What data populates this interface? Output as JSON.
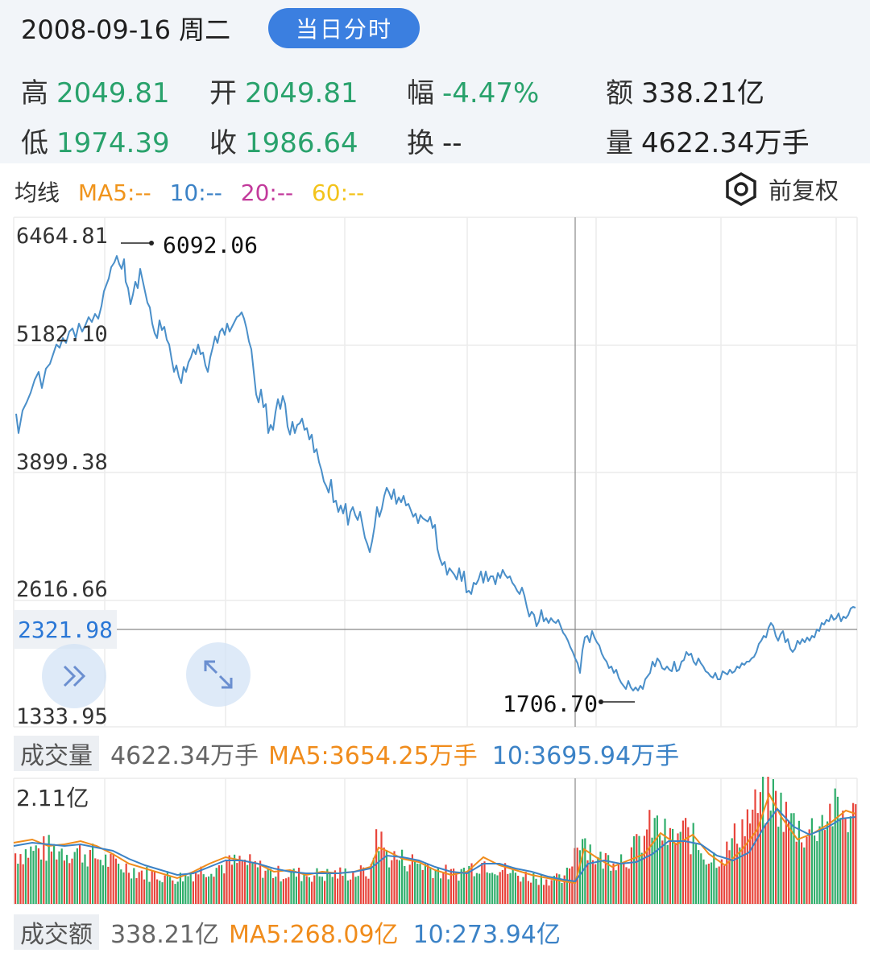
{
  "header": {
    "date": "2008-09-16 周二",
    "mode_button": "当日分时",
    "stats": [
      {
        "label": "高",
        "value": "2049.81",
        "color": "#29a26c"
      },
      {
        "label": "开",
        "value": "2049.81",
        "color": "#29a26c"
      },
      {
        "label": "幅",
        "value": "-4.47%",
        "color": "#29a26c"
      },
      {
        "label": "额",
        "value": "338.21亿",
        "color": "#222222"
      },
      {
        "label": "低",
        "value": "1974.39",
        "color": "#29a26c"
      },
      {
        "label": "收",
        "value": "1986.64",
        "color": "#29a26c"
      },
      {
        "label": "换",
        "value": "--",
        "color": "#222222"
      },
      {
        "label": "量",
        "value": "4622.34万手",
        "color": "#222222"
      }
    ]
  },
  "ma_legend": {
    "title": "均线",
    "ma5": "MA5:--",
    "ma10": "10:--",
    "ma20": "20:--",
    "ma60": "60:--",
    "colors": {
      "ma5": "#f0941c",
      "ma10": "#3b82c6",
      "ma20": "#c2399b",
      "ma60": "#f3c31a"
    }
  },
  "adjust_label": "前复权",
  "price_chart": {
    "y_labels": [
      "6464.81",
      "5182.10",
      "3899.38",
      "2616.66",
      "1333.95"
    ],
    "crosshair_price": "2321.98",
    "high_annotation": "6092.06",
    "low_annotation": "1706.70",
    "line_color": "#4a8fc9"
  },
  "volume_legend": {
    "tag": "成交量",
    "value": "4622.34万手",
    "ma5": "MA5:3654.25万手",
    "ma10": "10:3695.94万手"
  },
  "volume_chart": {
    "max_label": "2.11亿"
  },
  "amount_legend": {
    "tag": "成交额",
    "value": "338.21亿",
    "ma5": "MA5:268.09亿",
    "ma10": "10:273.94亿"
  }
}
